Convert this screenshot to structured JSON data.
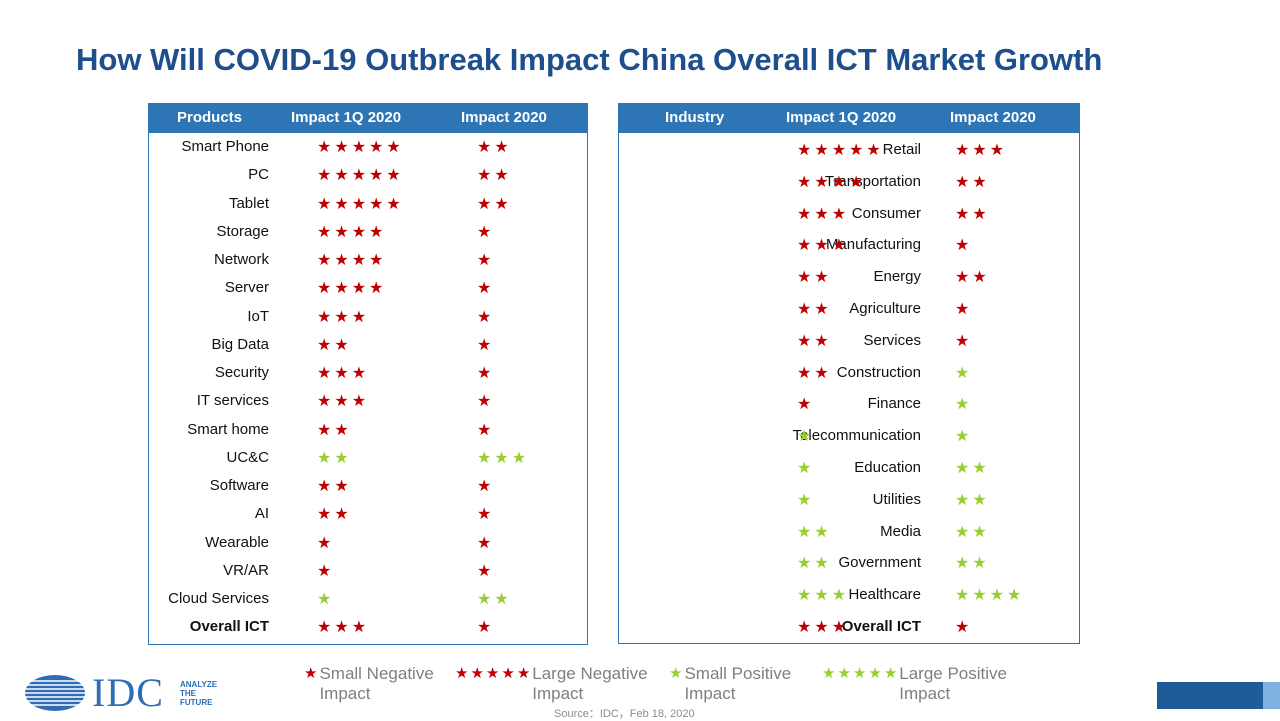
{
  "title": "How Will COVID-19 Outbreak Impact China Overall ICT Market Growth",
  "colors": {
    "negative_star": "#c00000",
    "positive_star": "#9acd32",
    "header": "#2e75b6",
    "title": "#1f4e8c"
  },
  "chart_data": [
    {
      "type": "table",
      "columns": [
        "Products",
        "Impact 1Q 2020",
        "Impact 2020"
      ],
      "rows": [
        {
          "label": "Smart Phone",
          "q1": {
            "stars": 5,
            "impact": "negative"
          },
          "y2020": {
            "stars": 2,
            "impact": "negative"
          }
        },
        {
          "label": "PC",
          "q1": {
            "stars": 5,
            "impact": "negative"
          },
          "y2020": {
            "stars": 2,
            "impact": "negative"
          }
        },
        {
          "label": "Tablet",
          "q1": {
            "stars": 5,
            "impact": "negative"
          },
          "y2020": {
            "stars": 2,
            "impact": "negative"
          }
        },
        {
          "label": "Storage",
          "q1": {
            "stars": 4,
            "impact": "negative"
          },
          "y2020": {
            "stars": 1,
            "impact": "negative"
          }
        },
        {
          "label": "Network",
          "q1": {
            "stars": 4,
            "impact": "negative"
          },
          "y2020": {
            "stars": 1,
            "impact": "negative"
          }
        },
        {
          "label": "Server",
          "q1": {
            "stars": 4,
            "impact": "negative"
          },
          "y2020": {
            "stars": 1,
            "impact": "negative"
          }
        },
        {
          "label": "IoT",
          "q1": {
            "stars": 3,
            "impact": "negative"
          },
          "y2020": {
            "stars": 1,
            "impact": "negative"
          }
        },
        {
          "label": "Big Data",
          "q1": {
            "stars": 2,
            "impact": "negative"
          },
          "y2020": {
            "stars": 1,
            "impact": "negative"
          }
        },
        {
          "label": "Security",
          "q1": {
            "stars": 3,
            "impact": "negative"
          },
          "y2020": {
            "stars": 1,
            "impact": "negative"
          }
        },
        {
          "label": "IT services",
          "q1": {
            "stars": 3,
            "impact": "negative"
          },
          "y2020": {
            "stars": 1,
            "impact": "negative"
          }
        },
        {
          "label": "Smart home",
          "q1": {
            "stars": 2,
            "impact": "negative"
          },
          "y2020": {
            "stars": 1,
            "impact": "negative"
          }
        },
        {
          "label": "UC&C",
          "q1": {
            "stars": 2,
            "impact": "positive"
          },
          "y2020": {
            "stars": 3,
            "impact": "positive"
          }
        },
        {
          "label": "Software",
          "q1": {
            "stars": 2,
            "impact": "negative"
          },
          "y2020": {
            "stars": 1,
            "impact": "negative"
          }
        },
        {
          "label": "AI",
          "q1": {
            "stars": 2,
            "impact": "negative"
          },
          "y2020": {
            "stars": 1,
            "impact": "negative"
          }
        },
        {
          "label": "Wearable",
          "q1": {
            "stars": 1,
            "impact": "negative"
          },
          "y2020": {
            "stars": 1,
            "impact": "negative"
          }
        },
        {
          "label": "VR/AR",
          "q1": {
            "stars": 1,
            "impact": "negative"
          },
          "y2020": {
            "stars": 1,
            "impact": "negative"
          }
        },
        {
          "label": "Cloud Services",
          "q1": {
            "stars": 1,
            "impact": "positive"
          },
          "y2020": {
            "stars": 2,
            "impact": "positive"
          }
        },
        {
          "label": "Overall ICT",
          "bold": true,
          "q1": {
            "stars": 3,
            "impact": "negative"
          },
          "y2020": {
            "stars": 1,
            "impact": "negative"
          }
        }
      ]
    },
    {
      "type": "table",
      "columns": [
        "Industry",
        "Impact 1Q 2020",
        "Impact 2020"
      ],
      "rows": [
        {
          "label": "Retail",
          "q1": {
            "stars": 5,
            "impact": "negative"
          },
          "y2020": {
            "stars": 3,
            "impact": "negative"
          }
        },
        {
          "label": "Transportation",
          "q1": {
            "stars": 4,
            "impact": "negative"
          },
          "y2020": {
            "stars": 2,
            "impact": "negative"
          }
        },
        {
          "label": "Consumer",
          "q1": {
            "stars": 3,
            "impact": "negative"
          },
          "y2020": {
            "stars": 2,
            "impact": "negative"
          }
        },
        {
          "label": "Manufacturing",
          "q1": {
            "stars": 3,
            "impact": "negative"
          },
          "y2020": {
            "stars": 1,
            "impact": "negative"
          }
        },
        {
          "label": "Energy",
          "q1": {
            "stars": 2,
            "impact": "negative"
          },
          "y2020": {
            "stars": 2,
            "impact": "negative"
          }
        },
        {
          "label": "Agriculture",
          "q1": {
            "stars": 2,
            "impact": "negative"
          },
          "y2020": {
            "stars": 1,
            "impact": "negative"
          }
        },
        {
          "label": "Services",
          "q1": {
            "stars": 2,
            "impact": "negative"
          },
          "y2020": {
            "stars": 1,
            "impact": "negative"
          }
        },
        {
          "label": "Construction",
          "q1": {
            "stars": 2,
            "impact": "negative"
          },
          "y2020": {
            "stars": 1,
            "impact": "positive"
          }
        },
        {
          "label": "Finance",
          "q1": {
            "stars": 1,
            "impact": "negative"
          },
          "y2020": {
            "stars": 1,
            "impact": "positive"
          }
        },
        {
          "label": "Telecommunication",
          "q1": {
            "stars": 1,
            "impact": "positive"
          },
          "y2020": {
            "stars": 1,
            "impact": "positive"
          }
        },
        {
          "label": "Education",
          "q1": {
            "stars": 1,
            "impact": "positive"
          },
          "y2020": {
            "stars": 2,
            "impact": "positive"
          }
        },
        {
          "label": "Utilities",
          "q1": {
            "stars": 1,
            "impact": "positive"
          },
          "y2020": {
            "stars": 2,
            "impact": "positive"
          }
        },
        {
          "label": "Media",
          "q1": {
            "stars": 2,
            "impact": "positive"
          },
          "y2020": {
            "stars": 2,
            "impact": "positive"
          }
        },
        {
          "label": "Government",
          "q1": {
            "stars": 2,
            "impact": "positive"
          },
          "y2020": {
            "stars": 2,
            "impact": "positive"
          }
        },
        {
          "label": "Healthcare",
          "q1": {
            "stars": 3,
            "impact": "positive"
          },
          "y2020": {
            "stars": 4,
            "impact": "positive"
          }
        },
        {
          "label": "Overall ICT",
          "bold": true,
          "q1": {
            "stars": 3,
            "impact": "negative"
          },
          "y2020": {
            "stars": 1,
            "impact": "negative"
          }
        }
      ]
    }
  ],
  "legend": [
    {
      "stars": 1,
      "impact": "negative",
      "text": "Small Negative Impact"
    },
    {
      "stars": 5,
      "impact": "negative",
      "text": "Large Negative Impact"
    },
    {
      "stars": 1,
      "impact": "positive",
      "text": "Small Positive Impact"
    },
    {
      "stars": 5,
      "impact": "positive",
      "text": "Large Positive Impact"
    }
  ],
  "source": "Source：IDC，Feb 18, 2020",
  "logo": {
    "name": "IDC",
    "tagline": [
      "ANALYZE",
      "THE",
      "FUTURE"
    ]
  }
}
